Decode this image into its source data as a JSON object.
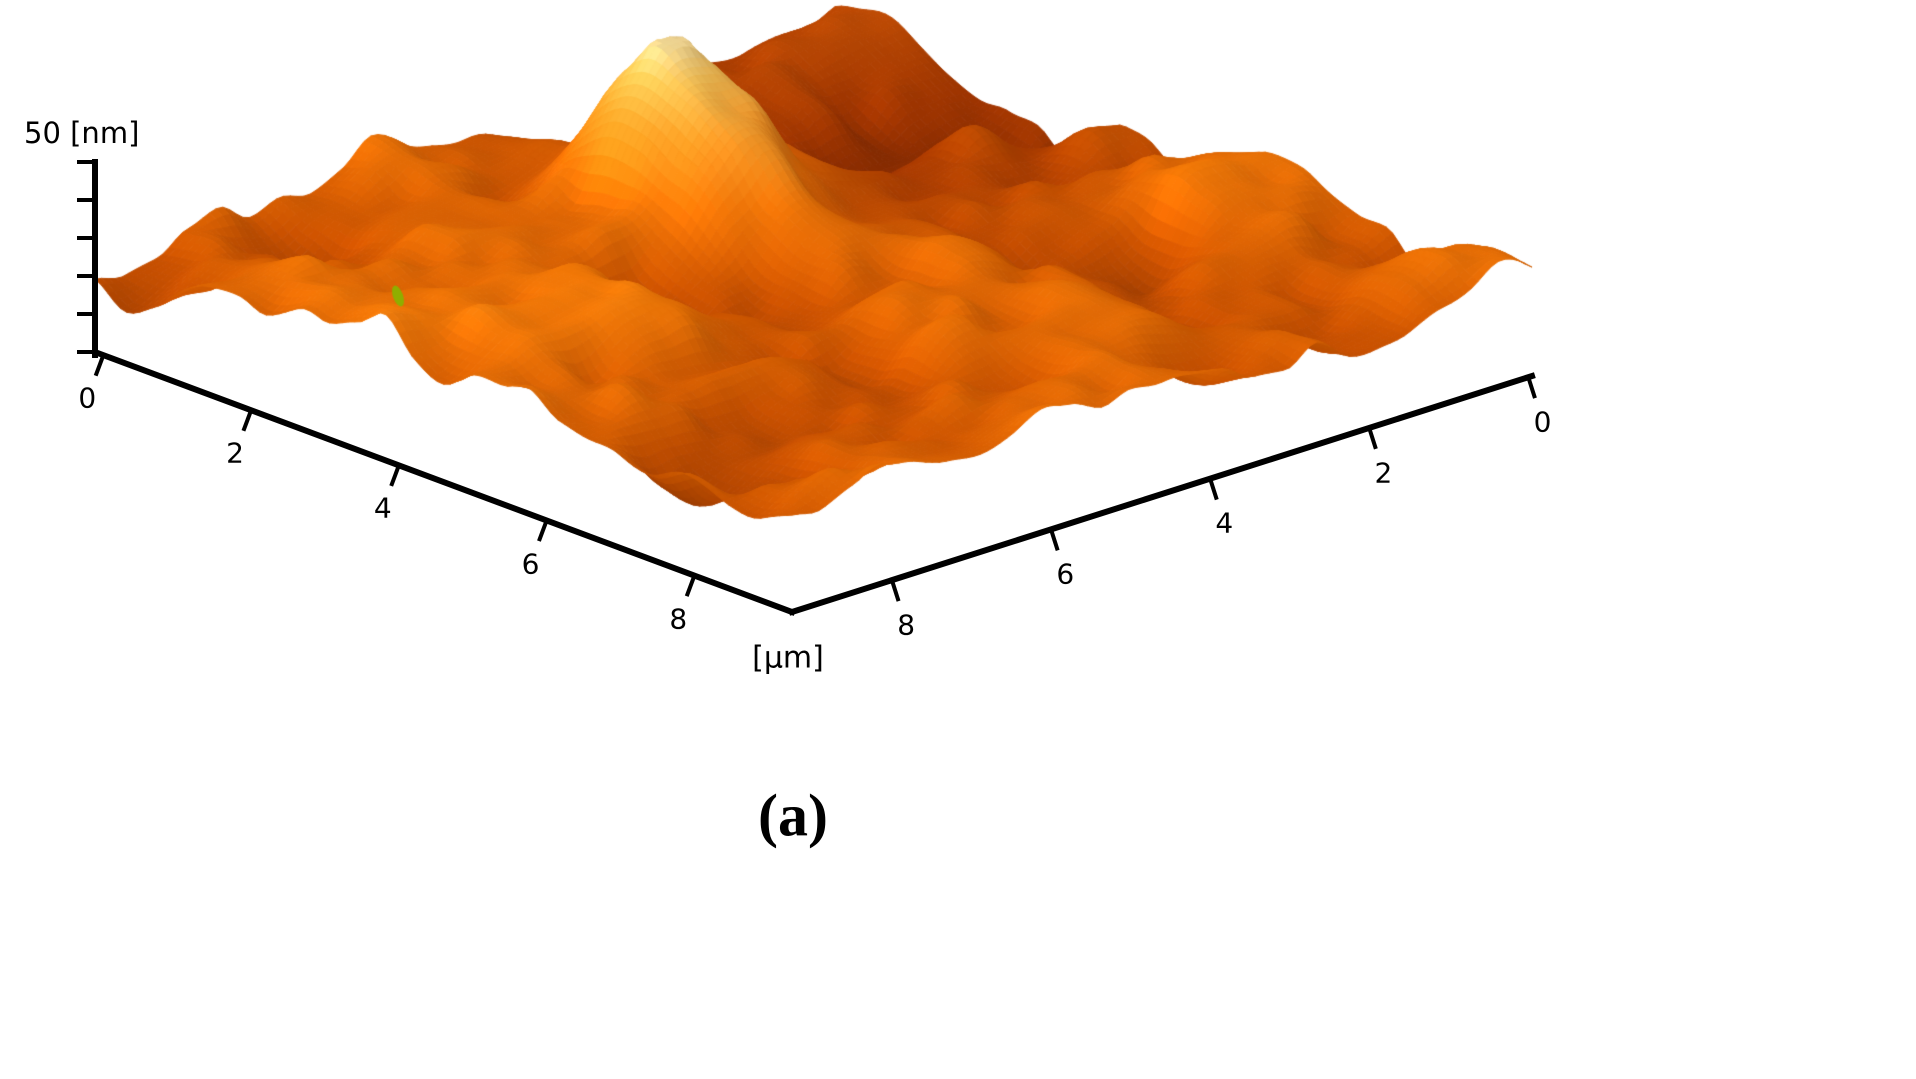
{
  "figure": {
    "caption": "(a)",
    "background": "#ffffff"
  },
  "chart_data": {
    "type": "surface",
    "title": "",
    "description_visible": "3D orange-colormap surface topography plot",
    "xlabel": "[µm]",
    "zlabel": "50 [nm]",
    "x_ticks": [
      0,
      2,
      4,
      6,
      8
    ],
    "depth_ticks": [
      8,
      6,
      4,
      2,
      0
    ],
    "x_range_um": [
      0,
      10
    ],
    "depth_range_um": [
      0,
      10
    ],
    "z_max_nm": 50,
    "grid": false,
    "legend": "none",
    "colormap": [
      {
        "t": 0.0,
        "c": "#782a00"
      },
      {
        "t": 0.3,
        "c": "#c65000"
      },
      {
        "t": 0.55,
        "c": "#f07808"
      },
      {
        "t": 0.75,
        "c": "#fca028"
      },
      {
        "t": 0.9,
        "c": "#ffd05a"
      },
      {
        "t": 1.0,
        "c": "#fff0a0"
      }
    ],
    "axis_color": "#000000",
    "artifact_color": "#8fae00",
    "surface_model": {
      "seed": 7,
      "base_nm": 5,
      "roughness_nm": 28,
      "peak": {
        "u": 0.3,
        "v": 0.53,
        "amp": 27
      }
    }
  }
}
